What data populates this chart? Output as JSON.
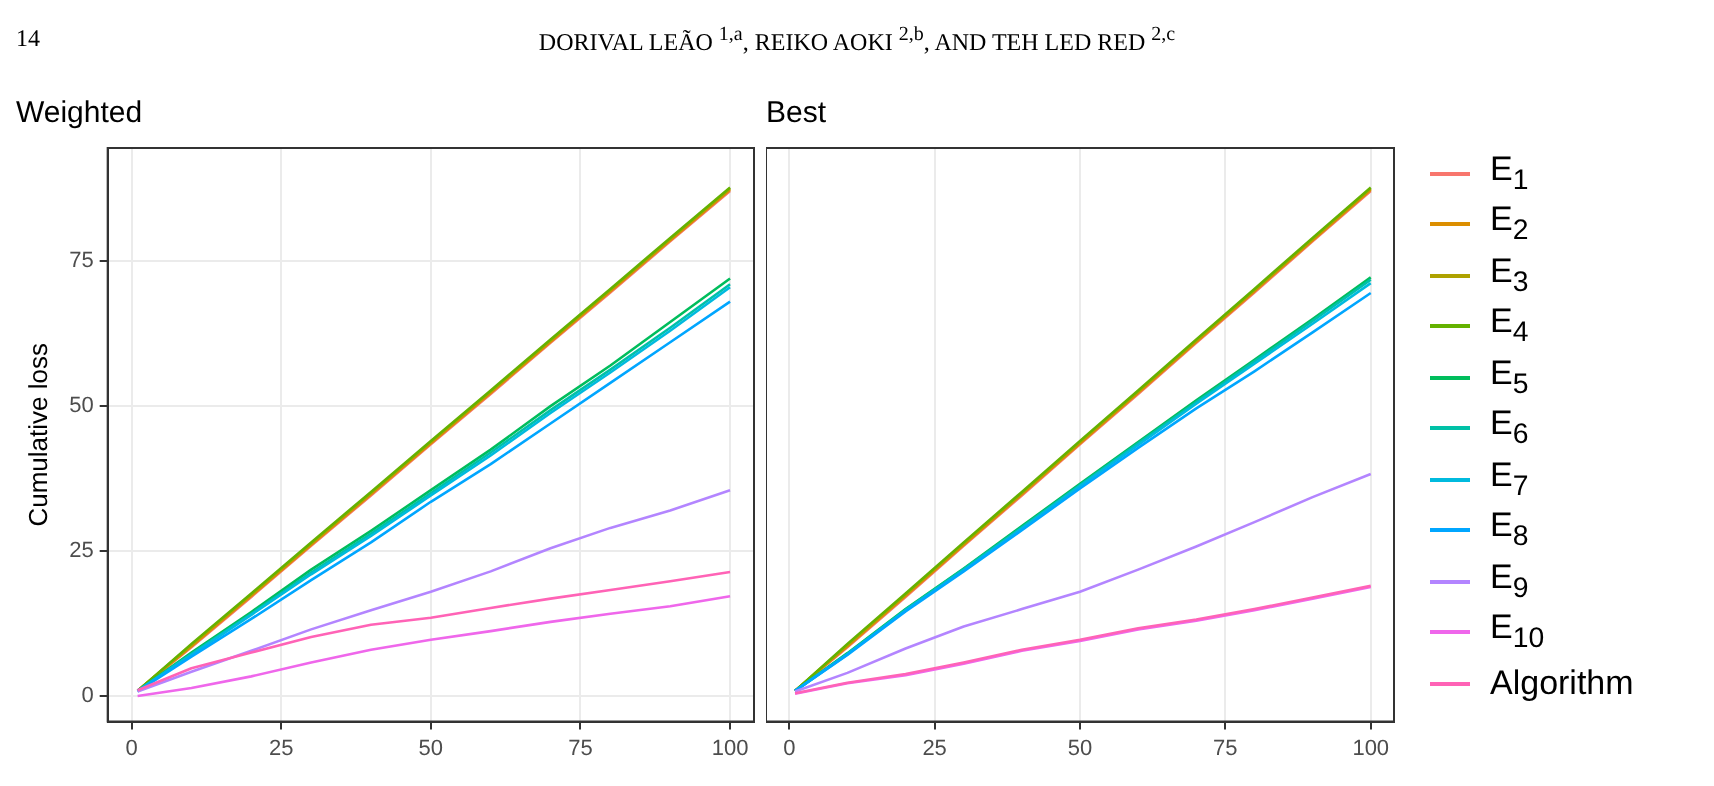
{
  "chart_data": [
    {
      "type": "line",
      "title": "Weighted",
      "ylabel": "Cumulative loss",
      "annotations": [
        "14",
        "DORIVAL LEÃO $^{1,a}$, REIKO AOKI $^{2,b}$, AND TEH LED RED $^{2,c}$"
      ],
      "x": [
        1,
        10,
        20,
        30,
        40,
        50,
        60,
        70,
        80,
        90,
        100
      ],
      "xlim": [
        -4,
        104
      ],
      "ylim": [
        -4.4,
        94.5
      ],
      "xticks": [
        0,
        25,
        50,
        75,
        100
      ],
      "yticks": [
        0,
        25,
        50,
        75
      ],
      "grid": true,
      "series": [
        {
          "color": "#f8766d",
          "values": [
            0.9,
            8.4,
            17.1,
            25.9,
            34.6,
            43.4,
            52.1,
            60.9,
            69.6,
            78.4,
            87.1
          ]
        },
        {
          "color": "#db8e00",
          "values": [
            0.9,
            8.6,
            17.3,
            26.1,
            34.8,
            43.6,
            52.3,
            61.1,
            69.8,
            78.6,
            87.3
          ]
        },
        {
          "color": "#aea200",
          "values": [
            0.9,
            8.8,
            17.5,
            26.3,
            35,
            43.8,
            52.5,
            61.3,
            70,
            78.8,
            87.5
          ]
        },
        {
          "color": "#64b200",
          "values": [
            0.9,
            9,
            17.7,
            26.5,
            35.2,
            44,
            52.7,
            61.5,
            70.2,
            79,
            87.7
          ]
        },
        {
          "color": "#00bd5c",
          "values": [
            0.9,
            7.5,
            14.5,
            21.8,
            28.5,
            35.5,
            42.5,
            50,
            57,
            64.5,
            72
          ]
        },
        {
          "color": "#00c1a7",
          "values": [
            0.9,
            7.3,
            14.2,
            21.3,
            28,
            35,
            42,
            49.3,
            56.3,
            63.5,
            71
          ]
        },
        {
          "color": "#00bade",
          "values": [
            0.9,
            7.1,
            14,
            21,
            27.6,
            34.6,
            41.5,
            48.8,
            55.8,
            63,
            70.5
          ]
        },
        {
          "color": "#00a6ff",
          "values": [
            0.8,
            6.8,
            13.3,
            20,
            26.5,
            33.5,
            40,
            47,
            54,
            61,
            68
          ]
        },
        {
          "color": "#b385ff",
          "values": [
            0.8,
            4.2,
            7.8,
            11.5,
            14.8,
            18,
            21.5,
            25.5,
            29,
            32,
            35.5
          ]
        },
        {
          "color": "#ef67eb",
          "values": [
            0,
            1.4,
            3.4,
            5.8,
            8,
            9.7,
            11.2,
            12.8,
            14.2,
            15.5,
            17.2
          ]
        },
        {
          "color": "#ff63b6",
          "values": [
            1,
            4.8,
            7.5,
            10.2,
            12.3,
            13.5,
            15.2,
            16.8,
            18.3,
            19.8,
            21.4
          ]
        }
      ]
    },
    {
      "type": "line",
      "title": "Best",
      "x": [
        1,
        10,
        20,
        30,
        40,
        50,
        60,
        70,
        80,
        90,
        100
      ],
      "xlim": [
        -4,
        104
      ],
      "ylim": [
        -4.4,
        94.5
      ],
      "xticks": [
        0,
        25,
        50,
        75,
        100
      ],
      "grid": true,
      "tick_labels": "x",
      "legend": "right",
      "series": [
        {
          "name": "E$_{1}$",
          "color": "#f8766d",
          "values": [
            0.9,
            8.4,
            17.1,
            25.9,
            34.6,
            43.4,
            52.1,
            60.9,
            69.6,
            78.4,
            87.1
          ]
        },
        {
          "name": "E$_{2}$",
          "color": "#db8e00",
          "values": [
            0.9,
            8.6,
            17.3,
            26.1,
            34.8,
            43.6,
            52.3,
            61.1,
            69.8,
            78.6,
            87.3
          ]
        },
        {
          "name": "E$_{3}$",
          "color": "#aea200",
          "values": [
            0.9,
            8.8,
            17.5,
            26.3,
            35,
            43.8,
            52.5,
            61.3,
            70,
            78.8,
            87.5
          ]
        },
        {
          "name": "E$_{4}$",
          "color": "#64b200",
          "values": [
            0.9,
            9,
            17.7,
            26.5,
            35.2,
            44,
            52.7,
            61.5,
            70.2,
            79,
            87.7
          ]
        },
        {
          "name": "E$_{5}$",
          "color": "#00bd5c",
          "values": [
            0.9,
            7.4,
            15,
            22,
            29.3,
            36.6,
            43.8,
            51,
            58,
            65,
            72.2
          ]
        },
        {
          "name": "E$_{6}$",
          "color": "#00c1a7",
          "values": [
            0.9,
            7.3,
            14.9,
            21.9,
            29.1,
            36.4,
            43.6,
            50.7,
            57.7,
            64.7,
            71.8
          ]
        },
        {
          "name": "E$_{7}$",
          "color": "#00bade",
          "values": [
            0.9,
            7.2,
            14.8,
            21.7,
            28.9,
            36.2,
            43.3,
            50.4,
            57.3,
            64.2,
            71.2
          ]
        },
        {
          "name": "E$_{8}$",
          "color": "#00a6ff",
          "values": [
            0.9,
            7.1,
            14.6,
            21.5,
            28.6,
            35.8,
            42.8,
            49.6,
            56,
            62.7,
            69.5
          ]
        },
        {
          "name": "E$_{9}$",
          "color": "#b385ff",
          "values": [
            0.8,
            4,
            8.2,
            12,
            15,
            18,
            21.8,
            25.8,
            30,
            34.3,
            38.3
          ]
        },
        {
          "name": "E$_{10}$",
          "color": "#ef67eb",
          "values": [
            0.4,
            2.2,
            3.6,
            5.6,
            7.8,
            9.5,
            11.5,
            13,
            14.8,
            16.8,
            18.8
          ]
        },
        {
          "name": "Algorithm",
          "color": "#ff63b6",
          "values": [
            0.5,
            2.3,
            3.8,
            5.8,
            8,
            9.7,
            11.7,
            13.2,
            15,
            17,
            19
          ]
        }
      ]
    }
  ]
}
